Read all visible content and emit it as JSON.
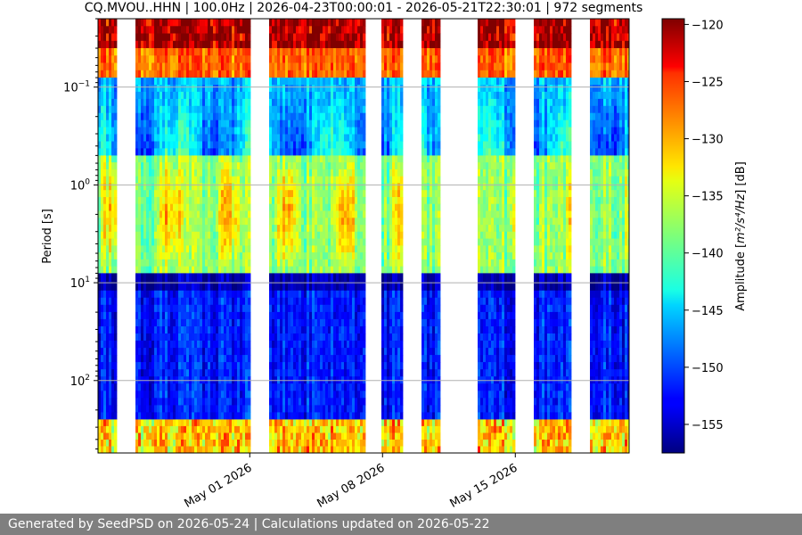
{
  "chart_data": {
    "type": "heatmap",
    "title": "CQ.MVOU..HHN | 100.0Hz | 2026-04-23T00:00:01 - 2026-05-21T22:30:01 | 972 segments",
    "xlabel": "",
    "ylabel": "Period [s]",
    "y_scale": "log",
    "y_inverted": true,
    "ylim": [
      0.02,
      550
    ],
    "xlim": [
      "2026-04-23",
      "2026-05-21"
    ],
    "x_ticks": [
      {
        "date": "2026-05-01",
        "label": "May 01 2026"
      },
      {
        "date": "2026-05-08",
        "label": "May 08 2026"
      },
      {
        "date": "2026-05-15",
        "label": "May 15 2026"
      }
    ],
    "y_ticks": [
      {
        "value": 0.1,
        "base": "10",
        "exp": "−1"
      },
      {
        "value": 1,
        "base": "10",
        "exp": "0"
      },
      {
        "value": 10,
        "base": "10",
        "exp": "1"
      },
      {
        "value": 100,
        "base": "10",
        "exp": "2"
      }
    ],
    "grid": true,
    "colormap": "jet",
    "colorbar": {
      "label_prefix": "Amplitude [",
      "label_math": "m²/s⁴/Hz",
      "label_suffix": "] [dB]",
      "range": [
        -157.5,
        -119.5
      ],
      "ticks": [
        -120,
        -125,
        -130,
        -135,
        -140,
        -145,
        -150,
        -155
      ],
      "tick_labels": [
        "−120",
        "−125",
        "−130",
        "−135",
        "−140",
        "−145",
        "−150",
        "−155"
      ]
    },
    "data_gaps": [
      {
        "start": "2026-04-24T00:00",
        "end": "2026-04-25T00:00"
      },
      {
        "start": "2026-05-01T00:00",
        "end": "2026-05-02T00:00"
      },
      {
        "start": "2026-05-07T03:00",
        "end": "2026-05-08T00:00"
      },
      {
        "start": "2026-05-09T00:00",
        "end": "2026-05-10T00:00"
      },
      {
        "start": "2026-05-11T00:00",
        "end": "2026-05-13T00:00"
      },
      {
        "start": "2026-05-15T00:00",
        "end": "2026-05-16T00:00"
      },
      {
        "start": "2026-05-18T00:00",
        "end": "2026-05-19T00:00"
      }
    ],
    "period_bands_db": [
      {
        "period_range": [
          0.02,
          0.04
        ],
        "level_db": -121
      },
      {
        "period_range": [
          0.04,
          0.08
        ],
        "level_db": -128
      },
      {
        "period_range": [
          0.08,
          0.5
        ],
        "level_db": -146
      },
      {
        "period_range": [
          0.5,
          8
        ],
        "level_db": -138
      },
      {
        "period_range": [
          8,
          12
        ],
        "level_db": -156
      },
      {
        "period_range": [
          12,
          250
        ],
        "level_db": -152
      },
      {
        "period_range": [
          250,
          550
        ],
        "level_db": -132
      }
    ]
  },
  "footer": {
    "text": "Generated by SeedPSD on 2026-05-24 | Calculations updated on 2026-05-22"
  }
}
